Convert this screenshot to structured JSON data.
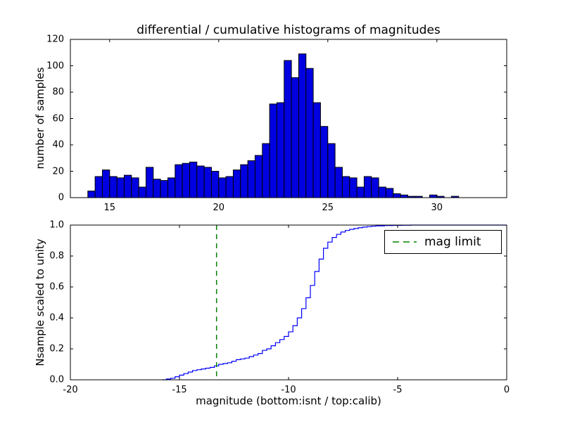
{
  "figure": {
    "title": "differential / cumulative histograms of magnitudes"
  },
  "chart_data": [
    {
      "type": "bar",
      "title": "differential / cumulative histograms of magnitudes",
      "xlabel": "",
      "ylabel": "number of samples",
      "xlim": [
        13.2,
        33.2
      ],
      "ylim": [
        0,
        120
      ],
      "xticks": [
        15,
        20,
        25,
        30
      ],
      "xticklabels": [
        "15",
        "20",
        "25",
        "30"
      ],
      "yticks": [
        0,
        20,
        40,
        60,
        80,
        100,
        120
      ],
      "yticklabels": [
        "0",
        "20",
        "40",
        "60",
        "80",
        "100",
        "120"
      ],
      "bin_start": 14.0,
      "bin_width": 0.3333,
      "bar_fill": "#0000e0",
      "bar_edge": "#000000",
      "values": [
        5,
        16,
        21,
        16,
        15,
        17,
        15,
        8,
        23,
        14,
        13,
        15,
        25,
        26,
        27,
        24,
        23,
        20,
        15,
        16,
        21,
        25,
        28,
        32,
        41,
        71,
        72,
        104,
        91,
        109,
        98,
        72,
        54,
        41,
        23,
        16,
        15,
        8,
        16,
        15,
        8,
        7,
        3,
        2,
        1,
        1,
        0,
        2,
        1,
        0,
        1
      ]
    },
    {
      "type": "line",
      "drawstyle": "steps",
      "xlabel": "magnitude (bottom:isnt / top:calib)",
      "ylabel": "Nsample scaled to unity",
      "xlim": [
        -20,
        0
      ],
      "ylim": [
        0,
        1
      ],
      "xticks": [
        -20,
        -15,
        -10,
        -5,
        0
      ],
      "xticklabels": [
        "-20",
        "-15",
        "-10",
        "-5",
        "0"
      ],
      "yticks": [
        0,
        0.2,
        0.4,
        0.6,
        0.8,
        1.0
      ],
      "yticklabels": [
        "0.0",
        "0.2",
        "0.4",
        "0.6",
        "0.8",
        "1.0"
      ],
      "line_color": "#0000ff",
      "mag_limit": -13.3,
      "mag_limit_color": "#008000",
      "legend": {
        "label": "mag limit",
        "position": "upper right"
      },
      "series": [
        {
          "name": "cumulative histogram",
          "x": [
            -15.8,
            -15.6,
            -15.4,
            -15.2,
            -15.0,
            -14.8,
            -14.6,
            -14.4,
            -14.2,
            -14.0,
            -13.8,
            -13.6,
            -13.4,
            -13.2,
            -13.0,
            -12.8,
            -12.6,
            -12.4,
            -12.2,
            -12.0,
            -11.8,
            -11.6,
            -11.4,
            -11.2,
            -11.0,
            -10.8,
            -10.6,
            -10.4,
            -10.2,
            -10.0,
            -9.8,
            -9.6,
            -9.4,
            -9.2,
            -9.0,
            -8.8,
            -8.6,
            -8.4,
            -8.2,
            -8.0,
            -7.8,
            -7.6,
            -7.4,
            -7.2,
            -7.0,
            -6.8,
            -6.6,
            -6.4,
            -6.2,
            -6.0,
            -5.6,
            -5.2,
            -4.8,
            -4.4,
            0
          ],
          "y": [
            0,
            0.005,
            0.01,
            0.02,
            0.03,
            0.04,
            0.05,
            0.06,
            0.065,
            0.07,
            0.075,
            0.08,
            0.09,
            0.1,
            0.105,
            0.11,
            0.12,
            0.13,
            0.135,
            0.14,
            0.15,
            0.16,
            0.17,
            0.19,
            0.2,
            0.22,
            0.24,
            0.26,
            0.28,
            0.31,
            0.35,
            0.4,
            0.46,
            0.53,
            0.61,
            0.7,
            0.78,
            0.85,
            0.89,
            0.92,
            0.94,
            0.955,
            0.965,
            0.972,
            0.978,
            0.983,
            0.987,
            0.99,
            0.993,
            0.995,
            0.997,
            0.998,
            0.999,
            1.0,
            1.0
          ]
        }
      ]
    }
  ]
}
